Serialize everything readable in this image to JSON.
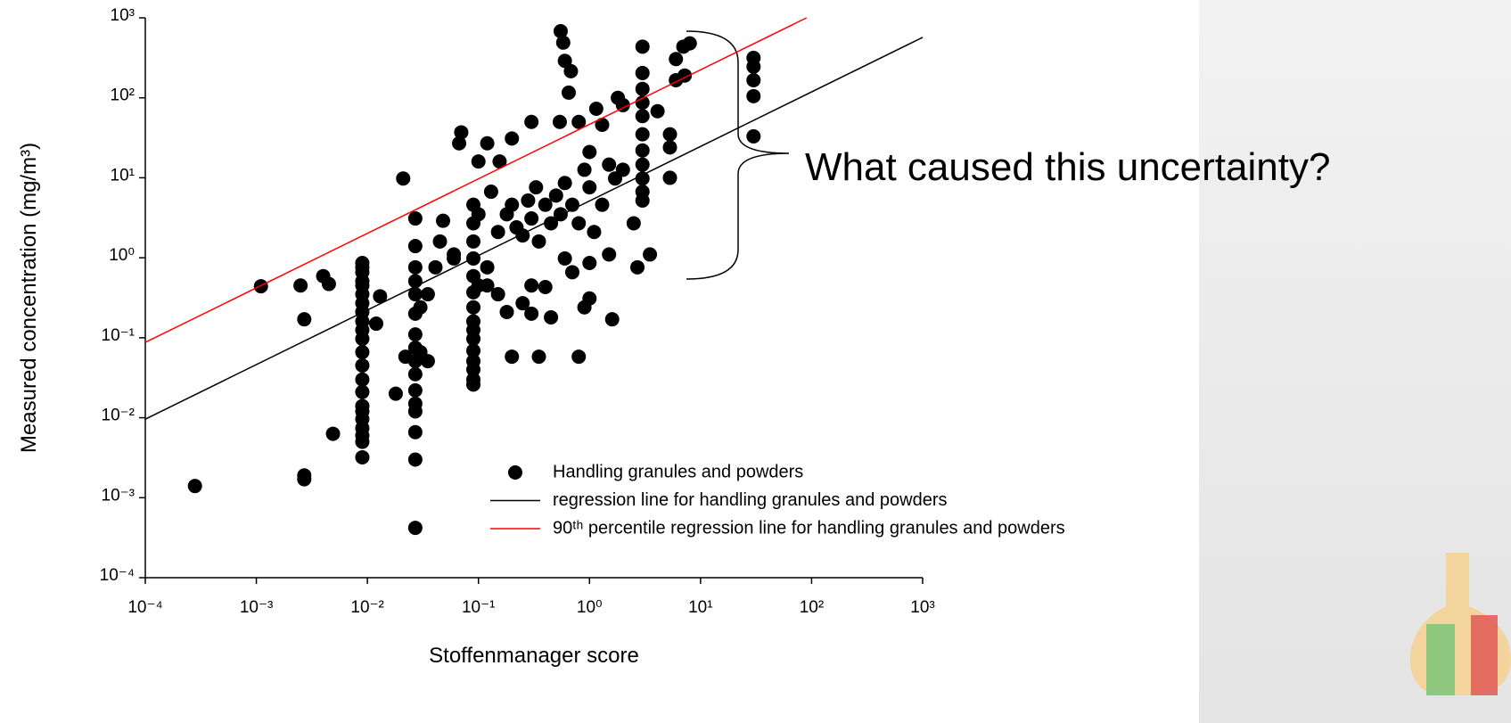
{
  "chart_data": {
    "type": "scatter",
    "x_label": "Stoffenmanager score",
    "y_label": "Measured concentration (mg/m³)",
    "annotation": "What caused this uncertainty?",
    "xscale": "log",
    "yscale": "log",
    "grid": false,
    "legend": "lower right",
    "xlim": [
      0.0001,
      1000
    ],
    "ylim": [
      0.0001,
      1000
    ],
    "xticks": [
      {
        "value": 0.0001,
        "label": "10⁻⁴"
      },
      {
        "value": 0.001,
        "label": "10⁻³"
      },
      {
        "value": 0.01,
        "label": "10⁻²"
      },
      {
        "value": 0.1,
        "label": "10⁻¹"
      },
      {
        "value": 1,
        "label": "10⁰"
      },
      {
        "value": 10,
        "label": "10¹"
      },
      {
        "value": 100,
        "label": "10²"
      },
      {
        "value": 1000,
        "label": "10³"
      }
    ],
    "yticks": [
      {
        "value": 0.0001,
        "label": "10⁻⁴"
      },
      {
        "value": 0.001,
        "label": "10⁻³"
      },
      {
        "value": 0.01,
        "label": "10⁻²"
      },
      {
        "value": 0.1,
        "label": "10⁻¹"
      },
      {
        "value": 1,
        "label": "10⁰"
      },
      {
        "value": 10,
        "label": "10¹"
      },
      {
        "value": 100,
        "label": "10²"
      },
      {
        "value": 1000,
        "label": "10³"
      }
    ],
    "series": [
      {
        "name": "Handling granules and powders",
        "type": "scatter",
        "color": "#000000",
        "x": [
          0.009,
          0.009,
          0.009,
          0.009,
          0.009,
          0.009,
          0.009,
          0.009,
          0.009,
          0.009,
          0.009,
          0.009,
          0.009,
          0.009,
          0.009,
          0.009,
          0.009,
          0.009,
          0.009,
          0.009,
          0.009,
          0.009,
          0.027,
          0.027,
          0.027,
          0.027,
          0.027,
          0.027,
          0.027,
          0.027,
          0.027,
          0.027,
          0.027,
          0.027,
          0.027,
          0.027,
          0.027,
          0.027,
          0.09,
          0.09,
          0.09,
          0.09,
          0.09,
          0.09,
          0.09,
          0.09,
          0.09,
          0.09,
          0.09,
          0.09,
          0.09,
          0.09,
          0.09,
          3,
          3,
          3,
          3,
          3,
          3,
          3,
          3,
          3,
          3,
          3,
          30,
          30,
          30,
          30,
          30,
          0.0011,
          0.0025,
          0.0027,
          0.0027,
          0.0027,
          0.00028,
          0.0049,
          0.004,
          0.0045,
          0.018,
          0.021,
          0.022,
          0.012,
          0.013,
          0.041,
          0.045,
          0.048,
          0.06,
          0.067,
          0.07,
          0.1,
          0.12,
          0.155,
          0.2,
          0.3,
          0.54,
          0.55,
          0.58,
          0.6,
          0.68,
          0.65,
          1.15,
          1.3,
          2,
          1.8,
          0.8,
          4.1,
          5.3,
          5.3,
          5.3,
          6,
          7,
          7.2,
          6,
          8,
          0.1,
          0.13,
          0.15,
          0.18,
          0.2,
          0.22,
          0.25,
          0.28,
          0.3,
          0.33,
          0.35,
          0.4,
          0.45,
          0.5,
          0.55,
          0.6,
          0.7,
          0.8,
          0.9,
          1,
          1,
          1.1,
          1.3,
          1.5,
          1.7,
          2,
          2.5,
          2.7,
          3.5,
          1.5,
          0.12,
          0.15,
          0.18,
          0.2,
          0.25,
          0.3,
          0.35,
          0.45,
          0.4,
          0.8,
          0.9,
          1,
          1.6,
          0.6,
          0.7,
          1,
          0.3,
          0.12,
          0.1,
          0.06,
          0.035,
          0.03,
          0.035,
          0.03
        ],
        "values": [
          0.86,
          0.76,
          0.66,
          0.51,
          0.45,
          0.35,
          0.27,
          0.21,
          0.16,
          0.125,
          0.097,
          0.066,
          0.045,
          0.03,
          0.021,
          0.014,
          0.012,
          0.0096,
          0.0074,
          0.006,
          0.005,
          0.0032,
          3.1,
          1.4,
          0.76,
          0.51,
          0.35,
          0.2,
          0.11,
          0.075,
          0.051,
          0.035,
          0.022,
          0.015,
          0.012,
          0.0066,
          0.003,
          0.00042,
          4.6,
          2.7,
          1.6,
          0.98,
          0.59,
          0.37,
          0.24,
          0.16,
          0.125,
          0.097,
          0.069,
          0.051,
          0.04,
          0.03,
          0.026,
          436,
          204,
          129,
          87,
          59,
          35,
          22,
          14.6,
          9.8,
          6.7,
          5.2,
          316,
          245,
          166,
          105,
          33,
          0.44,
          0.45,
          0.17,
          0.0019,
          0.0017,
          0.0014,
          0.0063,
          0.59,
          0.47,
          0.02,
          9.8,
          0.058,
          0.15,
          0.33,
          0.76,
          1.6,
          2.9,
          1.1,
          27,
          37,
          16,
          27,
          16,
          31,
          50,
          50,
          680,
          490,
          290,
          215,
          116,
          73,
          46,
          81,
          100,
          50,
          68,
          35,
          24,
          10,
          166,
          436,
          190,
          305,
          480,
          3.5,
          6.7,
          2.1,
          3.5,
          4.6,
          2.4,
          1.9,
          5.2,
          3.1,
          7.6,
          1.6,
          4.6,
          2.7,
          6,
          3.5,
          8.6,
          4.6,
          2.7,
          12.6,
          21,
          7.6,
          2.1,
          4.6,
          14.6,
          9.8,
          12.6,
          2.7,
          0.76,
          1.1,
          1.1,
          0.76,
          0.35,
          0.21,
          0.058,
          0.27,
          0.45,
          0.058,
          0.18,
          0.43,
          0.058,
          0.24,
          0.31,
          0.17,
          0.98,
          0.66,
          0.86,
          0.2,
          0.45,
          0.45,
          0.98,
          0.35,
          0.24,
          0.051,
          0.066
        ]
      },
      {
        "name": "regression line for handling granules and powders",
        "type": "line",
        "color": "#000000",
        "x": [
          0.0001,
          1000
        ],
        "values": [
          0.0096,
          570
        ]
      },
      {
        "name": "90ᵗʰ percentile regression line for handling granules and powders",
        "type": "line",
        "color": "#ff0000",
        "x": [
          0.0001,
          90
        ],
        "values": [
          0.0875,
          1000
        ]
      }
    ]
  }
}
